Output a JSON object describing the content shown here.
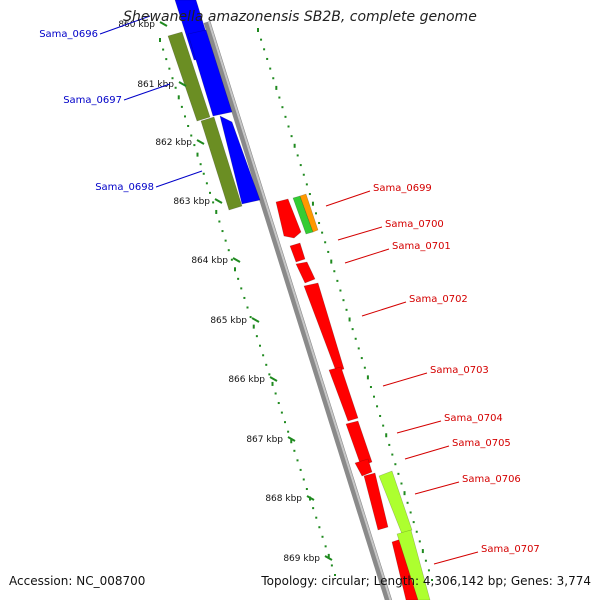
{
  "title": "Shewanella amazonensis SB2B, complete genome",
  "footer": {
    "accession_text": "Accession: NC_008700",
    "summary_text": "Topology: circular; Length: 4,306,142 bp; Genes: 3,774"
  },
  "colors": {
    "backbone": "#8a8a8a",
    "tick": "#1f8a1f",
    "label_left": "#0000c8",
    "label_right": "#d40000",
    "forward_cds_blue": "#0000ff",
    "forward_cds_olive": "#6b8e23",
    "reverse_cds_red": "#ff0000",
    "reverse_cds_lime": "#adff2f",
    "green_small": "#33cc33",
    "orange_small": "#ff9900"
  },
  "ticks": [
    {
      "label": "860 kbp"
    },
    {
      "label": "861 kbp"
    },
    {
      "label": "862 kbp"
    },
    {
      "label": "863 kbp"
    },
    {
      "label": "864 kbp"
    },
    {
      "label": "865 kbp"
    },
    {
      "label": "866 kbp"
    },
    {
      "label": "867 kbp"
    },
    {
      "label": "868 kbp"
    },
    {
      "label": "869 kbp"
    }
  ],
  "genes_left": [
    {
      "label": "Sama_0696"
    },
    {
      "label": "Sama_0697"
    },
    {
      "label": "Sama_0698"
    }
  ],
  "genes_right": [
    {
      "label": "Sama_0699"
    },
    {
      "label": "Sama_0700"
    },
    {
      "label": "Sama_0701"
    },
    {
      "label": "Sama_0702"
    },
    {
      "label": "Sama_0703"
    },
    {
      "label": "Sama_0704"
    },
    {
      "label": "Sama_0705"
    },
    {
      "label": "Sama_0706"
    },
    {
      "label": "Sama_0707"
    }
  ]
}
